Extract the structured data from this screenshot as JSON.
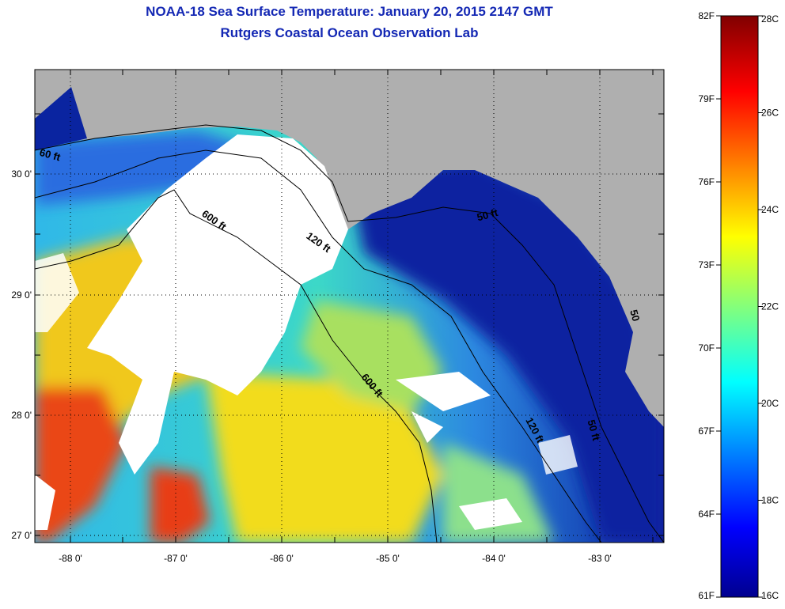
{
  "header": {
    "title": "NOAA-18 Sea Surface Temperature:  January 20, 2015 2147 GMT",
    "subtitle": "Rutgers Coastal Ocean Observation Lab"
  },
  "map": {
    "longitude_ticks": [
      "-88 0'",
      "-87 0'",
      "-86 0'",
      "-85 0'",
      "-84 0'",
      "-83 0'"
    ],
    "latitude_ticks": [
      "30 0'",
      "29 0'",
      "28 0'",
      "27 0'"
    ],
    "contour_labels": [
      "60 ft",
      "600 ft",
      "120 ft",
      "50 ft",
      "600 ft",
      "120 ft",
      "50 ft",
      "50"
    ],
    "colors": {
      "land": "#afafaf",
      "cloud": "#ffffff",
      "cold": "#0a23a0",
      "warm": "#f03c14"
    }
  },
  "colorbar": {
    "fahrenheit_labels": [
      "82F",
      "79F",
      "76F",
      "73F",
      "70F",
      "67F",
      "64F",
      "61F"
    ],
    "celsius_labels": [
      "28C",
      "26C",
      "24C",
      "22C",
      "20C",
      "18C",
      "16C"
    ],
    "range_c": [
      16,
      28
    ],
    "range_f": [
      61,
      82
    ]
  }
}
